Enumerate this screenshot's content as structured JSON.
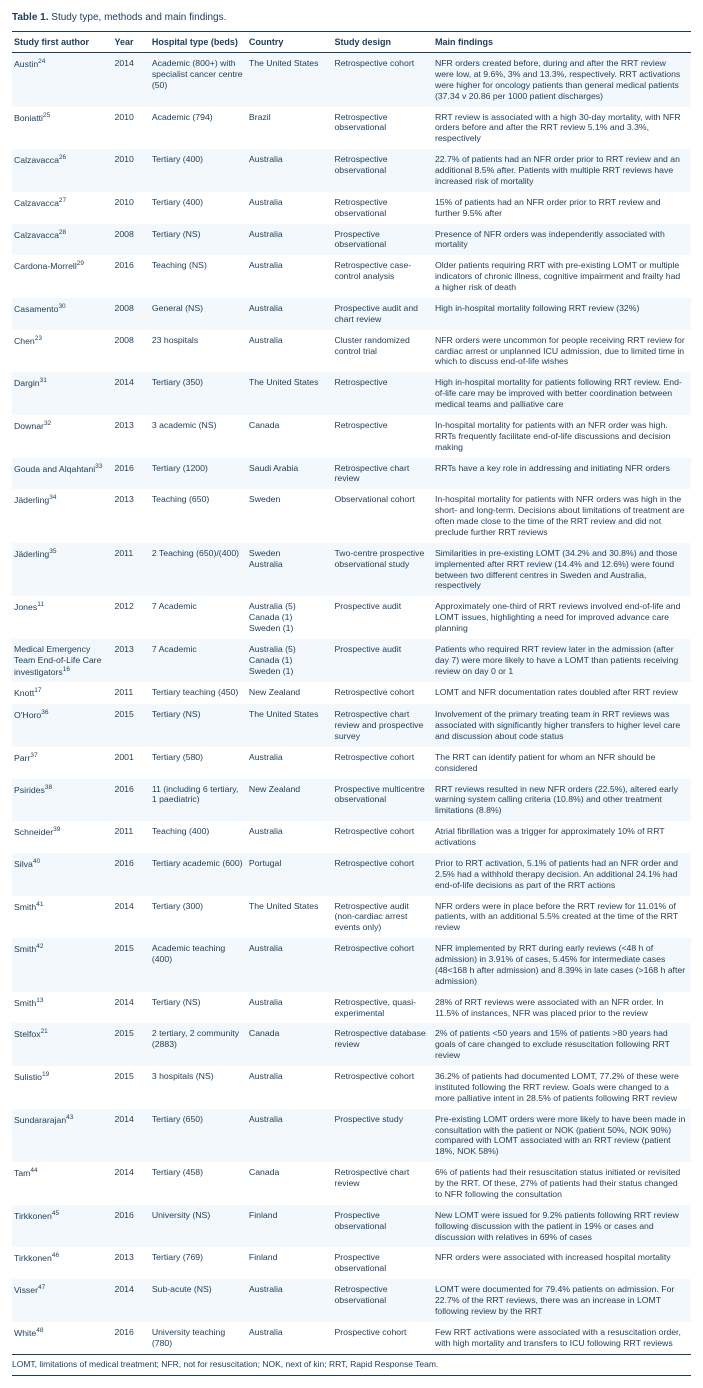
{
  "title_label": "Table 1.",
  "title_text": "Study type, methods and main findings.",
  "columns": [
    "Study first author",
    "Year",
    "Hospital type (beds)",
    "Country",
    "Study design",
    "Main findings"
  ],
  "rows": [
    {
      "author": "Austin",
      "sup": "24",
      "year": "2014",
      "hospital": "Academic (800+) with specialist cancer centre (50)",
      "country": "The United States",
      "design": "Retrospective cohort",
      "findings": "NFR orders created before, during and after the RRT review were low, at 9.6%, 3% and 13.3%, respectively. RRT activations were higher for oncology patients than general medical patients (37.34 v 20.86 per 1000 patient discharges)"
    },
    {
      "author": "Boniatti",
      "sup": "25",
      "year": "2010",
      "hospital": "Academic (794)",
      "country": "Brazil",
      "design": "Retrospective observational",
      "findings": "RRT review is associated with a high 30-day mortality, with NFR orders before and after the RRT review 5.1% and 3.3%, respectively"
    },
    {
      "author": "Calzavacca",
      "sup": "26",
      "year": "2010",
      "hospital": "Tertiary (400)",
      "country": "Australia",
      "design": "Retrospective observational",
      "findings": "22.7% of patients had an NFR order prior to RRT review and an additional 8.5% after. Patients with multiple RRT reviews have increased risk of mortality"
    },
    {
      "author": "Calzavacca",
      "sup": "27",
      "year": "2010",
      "hospital": "Tertiary (400)",
      "country": "Australia",
      "design": "Retrospective observational",
      "findings": "15% of patients had an NFR order prior to RRT review and further 9.5% after"
    },
    {
      "author": "Calzavacca",
      "sup": "28",
      "year": "2008",
      "hospital": "Tertiary (NS)",
      "country": "Australia",
      "design": "Prospective observational",
      "findings": "Presence of NFR orders was independently associated with mortality"
    },
    {
      "author": "Cardona-Morrell",
      "sup": "29",
      "year": "2016",
      "hospital": "Teaching (NS)",
      "country": "Australia",
      "design": "Retrospective case-control analysis",
      "findings": "Older patients requiring RRT with pre-existing LOMT or multiple indicators of chronic illness, cognitive impairment and frailty had a higher risk of death"
    },
    {
      "author": "Casamento",
      "sup": "30",
      "year": "2008",
      "hospital": "General (NS)",
      "country": "Australia",
      "design": "Prospective audit and chart review",
      "findings": "High in-hospital mortality following RRT review (32%)"
    },
    {
      "author": "Chen",
      "sup": "23",
      "year": "2008",
      "hospital": "23 hospitals",
      "country": "Australia",
      "design": "Cluster randomized control trial",
      "findings": "NFR orders were uncommon for people receiving RRT review for cardiac arrest or unplanned ICU admission, due to limited time in which to discuss end-of-life wishes"
    },
    {
      "author": "Dargin",
      "sup": "31",
      "year": "2014",
      "hospital": "Tertiary (350)",
      "country": "The United States",
      "design": "Retrospective",
      "findings": "High in-hospital mortality for patients following RRT review. End-of-life care may be improved with better coordination between medical teams and palliative care"
    },
    {
      "author": "Downar",
      "sup": "32",
      "year": "2013",
      "hospital": "3 academic (NS)",
      "country": "Canada",
      "design": "Retrospective",
      "findings": "In-hospital mortality for patients with an NFR order was high. RRTs frequently facilitate end-of-life discussions and decision making"
    },
    {
      "author": "Gouda and Alqahtani",
      "sup": "33",
      "year": "2016",
      "hospital": "Tertiary (1200)",
      "country": "Saudi Arabia",
      "design": "Retrospective chart review",
      "findings": "RRTs have a key role in addressing and initiating NFR orders"
    },
    {
      "author": "Jäderling",
      "sup": "34",
      "year": "2013",
      "hospital": "Teaching (650)",
      "country": "Sweden",
      "design": "Observational cohort",
      "findings": "In-hospital mortality for patients with NFR orders was high in the short- and long-term. Decisions about limitations of treatment are often made close to the time of the RRT review and did not preclude further RRT reviews"
    },
    {
      "author": "Jäderling",
      "sup": "35",
      "year": "2011",
      "hospital": "2 Teaching (650)/(400)",
      "country": "Sweden<br>Australia",
      "design": "Two-centre prospective observational study",
      "findings": "Similarities in pre-existing LOMT (34.2% and 30.8%) and those implemented after RRT review (14.4% and 12.6%) were found between two different centres in Sweden and Australia, respectively"
    },
    {
      "author": "Jones",
      "sup": "11",
      "year": "2012",
      "hospital": "7 Academic",
      "country": "Australia (5)<br>Canada (1)<br>Sweden (1)",
      "design": "Prospective audit",
      "findings": "Approximately one-third of RRT reviews involved end-of-life and LOMT issues, highlighting a need for improved advance care planning"
    },
    {
      "author": "Medical Emergency Team End-of-Life Care investigators",
      "sup": "16",
      "year": "2013",
      "hospital": "7 Academic",
      "country": "Australia (5)<br>Canada (1)<br>Sweden (1)",
      "design": "Prospective audit",
      "findings": "Patients who required RRT review later in the admission (after day 7) were more likely to have a LOMT than patients receiving review on day 0 or 1"
    },
    {
      "author": "Knott",
      "sup": "17",
      "year": "2011",
      "hospital": "Tertiary teaching (450)",
      "country": "New Zealand",
      "design": "Retrospective cohort",
      "findings": "LOMT and NFR documentation rates doubled after RRT review"
    },
    {
      "author": "O'Horo",
      "sup": "36",
      "year": "2015",
      "hospital": "Tertiary (NS)",
      "country": "The United States",
      "design": "Retrospective chart review and prospective survey",
      "findings": "Involvement of the primary treating team in RRT reviews was associated with significantly higher transfers to higher level care and discussion about code status"
    },
    {
      "author": "Parr",
      "sup": "37",
      "year": "2001",
      "hospital": "Tertiary (580)",
      "country": "Australia",
      "design": "Retrospective cohort",
      "findings": "The RRT can identify patient for whom an NFR should be considered"
    },
    {
      "author": "Psirides",
      "sup": "38",
      "year": "2016",
      "hospital": "11 (including 6 tertiary, 1 paediatric)",
      "country": "New Zealand",
      "design": "Prospective multicentre observational",
      "findings": "RRT reviews resulted in new NFR orders (22.5%), altered early warning system calling criteria (10.8%) and other treatment limitations (8.8%)"
    },
    {
      "author": "Schneider",
      "sup": "39",
      "year": "2011",
      "hospital": "Teaching (400)",
      "country": "Australia",
      "design": "Retrospective cohort",
      "findings": "Atrial fibrillation was a trigger for approximately 10% of RRT activations"
    },
    {
      "author": "Silva",
      "sup": "40",
      "year": "2016",
      "hospital": "Tertiary academic (600)",
      "country": "Portugal",
      "design": "Retrospective cohort",
      "findings": "Prior to RRT activation, 5.1% of patients had an NFR order and 2.5% had a withhold therapy decision. An additional 24.1% had end-of-life decisions as part of the RRT actions"
    },
    {
      "author": "Smith",
      "sup": "41",
      "year": "2014",
      "hospital": "Tertiary (300)",
      "country": "The United States",
      "design": "Retrospective audit (non-cardiac arrest events only)",
      "findings": "NFR orders were in place before the RRT review for 11.01% of patients, with an additional 5.5% created at the time of the RRT review"
    },
    {
      "author": "Smith",
      "sup": "42",
      "year": "2015",
      "hospital": "Academic teaching (400)",
      "country": "Australia",
      "design": "Retrospective cohort",
      "findings": "NFR implemented by RRT during early reviews (<48 h of admission) in 3.91% of cases, 5.45% for intermediate cases (48<168 h after admission) and 8.39% in late cases (>168 h after admission)"
    },
    {
      "author": "Smith",
      "sup": "13",
      "year": "2014",
      "hospital": "Tertiary (NS)",
      "country": "Australia",
      "design": "Retrospective, quasi-experimental",
      "findings": "28% of RRT reviews were associated with an NFR order. In 11.5% of instances, NFR was placed prior to the review"
    },
    {
      "author": "Stelfox",
      "sup": "21",
      "year": "2015",
      "hospital": "2 tertiary, 2 community (2883)",
      "country": "Canada",
      "design": "Retrospective database review",
      "findings": "2% of patients <50 years and 15% of patients >80 years had goals of care changed to exclude resuscitation following RRT review"
    },
    {
      "author": "Sulistio",
      "sup": "19",
      "year": "2015",
      "hospital": "3 hospitals (NS)",
      "country": "Australia",
      "design": "Retrospective cohort",
      "findings": "36.2% of patients had documented LOMT, 77.2% of these were instituted following the RRT review. Goals were changed to a more palliative intent in 28.5% of patients following RRT review"
    },
    {
      "author": "Sundararajan",
      "sup": "43",
      "year": "2014",
      "hospital": "Tertiary (650)",
      "country": "Australia",
      "design": "Prospective study",
      "findings": "Pre-existing LOMT orders were more likely to have been made in consultation with the patient or NOK (patient 50%, NOK 90%) compared with LOMT associated with an RRT review (patient 18%, NOK 58%)"
    },
    {
      "author": "Tam",
      "sup": "44",
      "year": "2014",
      "hospital": "Tertiary (458)",
      "country": "Canada",
      "design": "Retrospective chart review",
      "findings": "6% of patients had their resuscitation status initiated or revisited by the RRT. Of these, 27% of patients had their status changed to NFR following the consultation"
    },
    {
      "author": "Tirkkonen",
      "sup": "45",
      "year": "2016",
      "hospital": "University (NS)",
      "country": "Finland",
      "design": "Prospective observational",
      "findings": "New LOMT were issued for 9.2% patients following RRT review following discussion with the patient in 19% or cases and discussion with relatives in 69% of cases"
    },
    {
      "author": "Tirkkonen",
      "sup": "46",
      "year": "2013",
      "hospital": "Tertiary (769)",
      "country": "Finland",
      "design": "Prospective observational",
      "findings": "NFR orders were associated with increased hospital mortality"
    },
    {
      "author": "Visser",
      "sup": "47",
      "year": "2014",
      "hospital": "Sub-acute (NS)",
      "country": "Australia",
      "design": "Retrospective observational",
      "findings": "LOMT were documented for 79.4% patients on admission. For 22.7% of the RRT reviews, there was an increase in LOMT following review by the RRT"
    },
    {
      "author": "White",
      "sup": "48",
      "year": "2016",
      "hospital": "University teaching (780)",
      "country": "Australia",
      "design": "Prospective cohort",
      "findings": "Few RRT activations were associated with a resuscitation order, with high mortality and transfers to ICU following RRT reviews"
    }
  ],
  "footnote": "LOMT, limitations of medical treatment; NFR, not for resuscitation; NOK, next of kin; RRT, Rapid Response Team."
}
